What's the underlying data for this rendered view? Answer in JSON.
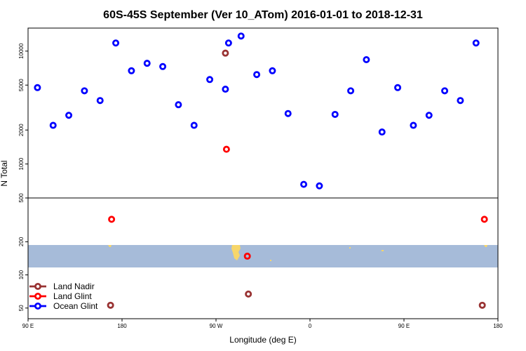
{
  "chart_data": {
    "type": "scatter",
    "title": "60S-45S September (Ver 10_ATom)   2016-01-01 to 2018-12-31",
    "xlabel": "Longitude (deg E)",
    "ylabel": "N Total",
    "x_scale": "longitude, 90E to 180 wrapping through 0",
    "xlim": [
      90,
      540
    ],
    "x_ticks": [
      {
        "value": 90,
        "label": "90 E"
      },
      {
        "value": 180,
        "label": "180"
      },
      {
        "value": 270,
        "label": "90 W"
      },
      {
        "value": 360,
        "label": "0"
      },
      {
        "value": 450,
        "label": "90 E"
      },
      {
        "value": 540,
        "label": "180"
      }
    ],
    "y_scale": "log",
    "panels": [
      {
        "name": "upper",
        "ylim": [
          500,
          16000
        ],
        "y_ticks": [
          {
            "value": 500,
            "label": "500"
          },
          {
            "value": 1000,
            "label": "1000"
          },
          {
            "value": 2000,
            "label": "2000"
          },
          {
            "value": 5000,
            "label": "5000"
          },
          {
            "value": 10000,
            "label": "10000"
          }
        ]
      },
      {
        "name": "lower",
        "ylim": [
          40,
          500
        ],
        "y_ticks": [
          {
            "value": 50,
            "label": "50"
          },
          {
            "value": 100,
            "label": "100"
          },
          {
            "value": 200,
            "label": "200"
          }
        ]
      }
    ],
    "series": [
      {
        "name": "Land Nadir",
        "color": "#993333",
        "points": [
          {
            "x": 279,
            "y": 9600,
            "panel": 0
          },
          {
            "x": 169,
            "y": 53,
            "panel": 1
          },
          {
            "x": 301,
            "y": 67,
            "panel": 1
          },
          {
            "x": 525,
            "y": 53,
            "panel": 1
          }
        ]
      },
      {
        "name": "Land Glint",
        "color": "#ff0000",
        "points": [
          {
            "x": 280,
            "y": 1350,
            "panel": 0
          },
          {
            "x": 170,
            "y": 320,
            "panel": 1
          },
          {
            "x": 300,
            "y": 148,
            "panel": 1
          },
          {
            "x": 527,
            "y": 320,
            "panel": 1
          }
        ]
      },
      {
        "name": "Ocean Glint",
        "color": "#0000ff",
        "points": [
          {
            "x": 99,
            "y": 4750,
            "panel": 0
          },
          {
            "x": 114,
            "y": 2200,
            "panel": 0
          },
          {
            "x": 129,
            "y": 2700,
            "panel": 0
          },
          {
            "x": 144,
            "y": 4450,
            "panel": 0
          },
          {
            "x": 159,
            "y": 3650,
            "panel": 0
          },
          {
            "x": 174,
            "y": 11800,
            "panel": 0
          },
          {
            "x": 189,
            "y": 6700,
            "panel": 0
          },
          {
            "x": 204,
            "y": 7800,
            "panel": 0
          },
          {
            "x": 219,
            "y": 7300,
            "panel": 0
          },
          {
            "x": 234,
            "y": 3350,
            "panel": 0
          },
          {
            "x": 249,
            "y": 2200,
            "panel": 0
          },
          {
            "x": 264,
            "y": 5600,
            "panel": 0
          },
          {
            "x": 279,
            "y": 4600,
            "panel": 0
          },
          {
            "x": 294,
            "y": 13600,
            "panel": 0
          },
          {
            "x": 309,
            "y": 6200,
            "panel": 0
          },
          {
            "x": 324,
            "y": 6700,
            "panel": 0
          },
          {
            "x": 339,
            "y": 2800,
            "panel": 0
          },
          {
            "x": 354,
            "y": 660,
            "panel": 0
          },
          {
            "x": 369,
            "y": 640,
            "panel": 0
          },
          {
            "x": 384,
            "y": 2750,
            "panel": 0
          },
          {
            "x": 399,
            "y": 4450,
            "panel": 0
          },
          {
            "x": 414,
            "y": 8400,
            "panel": 0
          },
          {
            "x": 429,
            "y": 1920,
            "panel": 0
          },
          {
            "x": 444,
            "y": 4750,
            "panel": 0
          },
          {
            "x": 459,
            "y": 2200,
            "panel": 0
          },
          {
            "x": 474,
            "y": 2700,
            "panel": 0
          },
          {
            "x": 489,
            "y": 4450,
            "panel": 0
          },
          {
            "x": 504,
            "y": 3650,
            "panel": 0
          },
          {
            "x": 519,
            "y": 11800,
            "panel": 0
          },
          {
            "x": 282,
            "y": 11800,
            "panel": 0
          }
        ]
      }
    ],
    "legend_position": "bottom-left",
    "grid": false,
    "background_map": {
      "latitude_band": "60S-45S",
      "ocean_color": "#a6bbd9",
      "land_color": "#f7d66a"
    }
  }
}
